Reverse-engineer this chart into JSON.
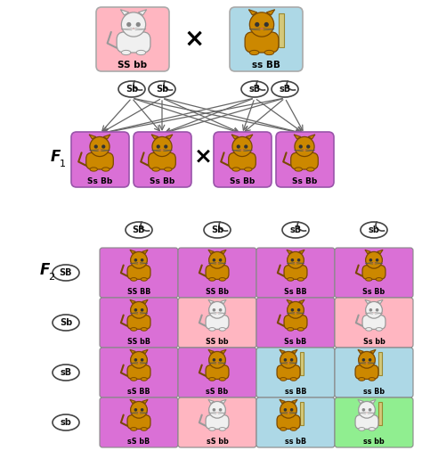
{
  "bg_color": "#ffffff",
  "parent1_bg": "#ffb6c1",
  "parent2_bg": "#add8e6",
  "f1_bg": "#da70d6",
  "parent1_label": "SS bb",
  "parent2_label": "ss BB",
  "f1_labels": [
    "Ss Bb",
    "Ss Bb",
    "Ss Bb",
    "Ss Bb"
  ],
  "gametes_left": [
    "Sb",
    "Sb"
  ],
  "gametes_right": [
    "sB",
    "sB"
  ],
  "f2_col_labels": [
    "SB",
    "Sb",
    "sB",
    "sb"
  ],
  "f2_row_labels": [
    "SB",
    "Sb",
    "sB",
    "sb"
  ],
  "f2_grid_labels": [
    [
      "SS BB",
      "SS Bb",
      "Ss BB",
      "Ss Bb"
    ],
    [
      "SS bB",
      "SS bb",
      "Ss bB",
      "Ss bb"
    ],
    [
      "sS BB",
      "sS Bb",
      "ss BB",
      "ss Bb"
    ],
    [
      "sS bB",
      "sS bb",
      "ss bB",
      "ss bb"
    ]
  ],
  "f2_grid_colors": [
    [
      "#da70d6",
      "#da70d6",
      "#da70d6",
      "#da70d6"
    ],
    [
      "#da70d6",
      "#ffb6c1",
      "#da70d6",
      "#ffb6c1"
    ],
    [
      "#da70d6",
      "#da70d6",
      "#add8e6",
      "#add8e6"
    ],
    [
      "#da70d6",
      "#ffb6c1",
      "#add8e6",
      "#90ee90"
    ]
  ]
}
